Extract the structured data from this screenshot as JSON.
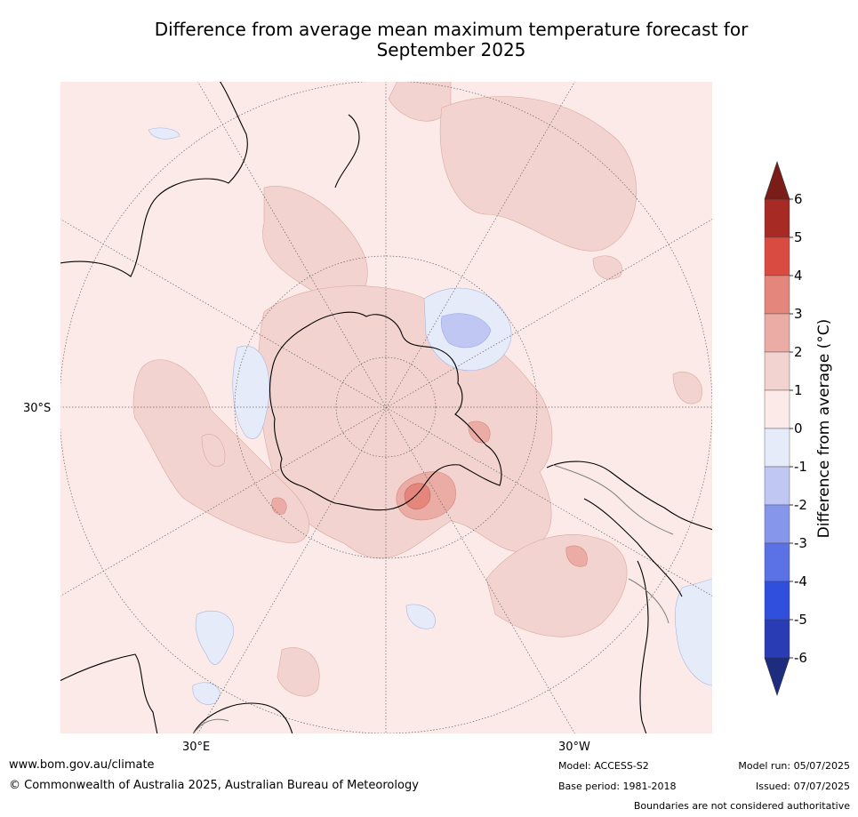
{
  "title_line1": "Difference from average mean maximum temperature forecast for",
  "title_line2": "September 2025",
  "map": {
    "labels": {
      "lat": "30°S",
      "lon_east": "30°E",
      "lon_west": "30°W"
    },
    "colors": {
      "land_outline": "#000000",
      "boundary": "#808080",
      "anom_0_1": "#fbeae8",
      "anom_1_2": "#f3d3cf",
      "anom_2_3": "#eaaca5",
      "anom_3_4": "#e4867b",
      "neg_0_1": "#e6ebfa",
      "neg_1_2": "#bfc7f2"
    }
  },
  "colorbar": {
    "label": "Difference from average (°C)",
    "ticks": [
      "6",
      "5",
      "4",
      "3",
      "2",
      "1",
      "0",
      "-1",
      "-2",
      "-3",
      "-4",
      "-5",
      "-6"
    ],
    "colors": [
      "#a82a25",
      "#d94b40",
      "#e4867b",
      "#eaaca5",
      "#f3d3cf",
      "#fbeae8",
      "#e6ebfa",
      "#bfc7f2",
      "#8596eb",
      "#5a72e5",
      "#2f4fdc",
      "#2a3cb4"
    ],
    "over_color": "#7a1d18",
    "under_color": "#1e2c80"
  },
  "footer": {
    "website": "www.bom.gov.au/climate",
    "copyright": "© Commonwealth of Australia 2025, Australian Bureau of Meteorology",
    "model": "Model: ACCESS-S2",
    "base_period": "Base period: 1981-2018",
    "model_run": "Model run: 05/07/2025",
    "issued": "Issued: 07/07/2025",
    "disclaimer": "Boundaries are not considered authoritative"
  }
}
